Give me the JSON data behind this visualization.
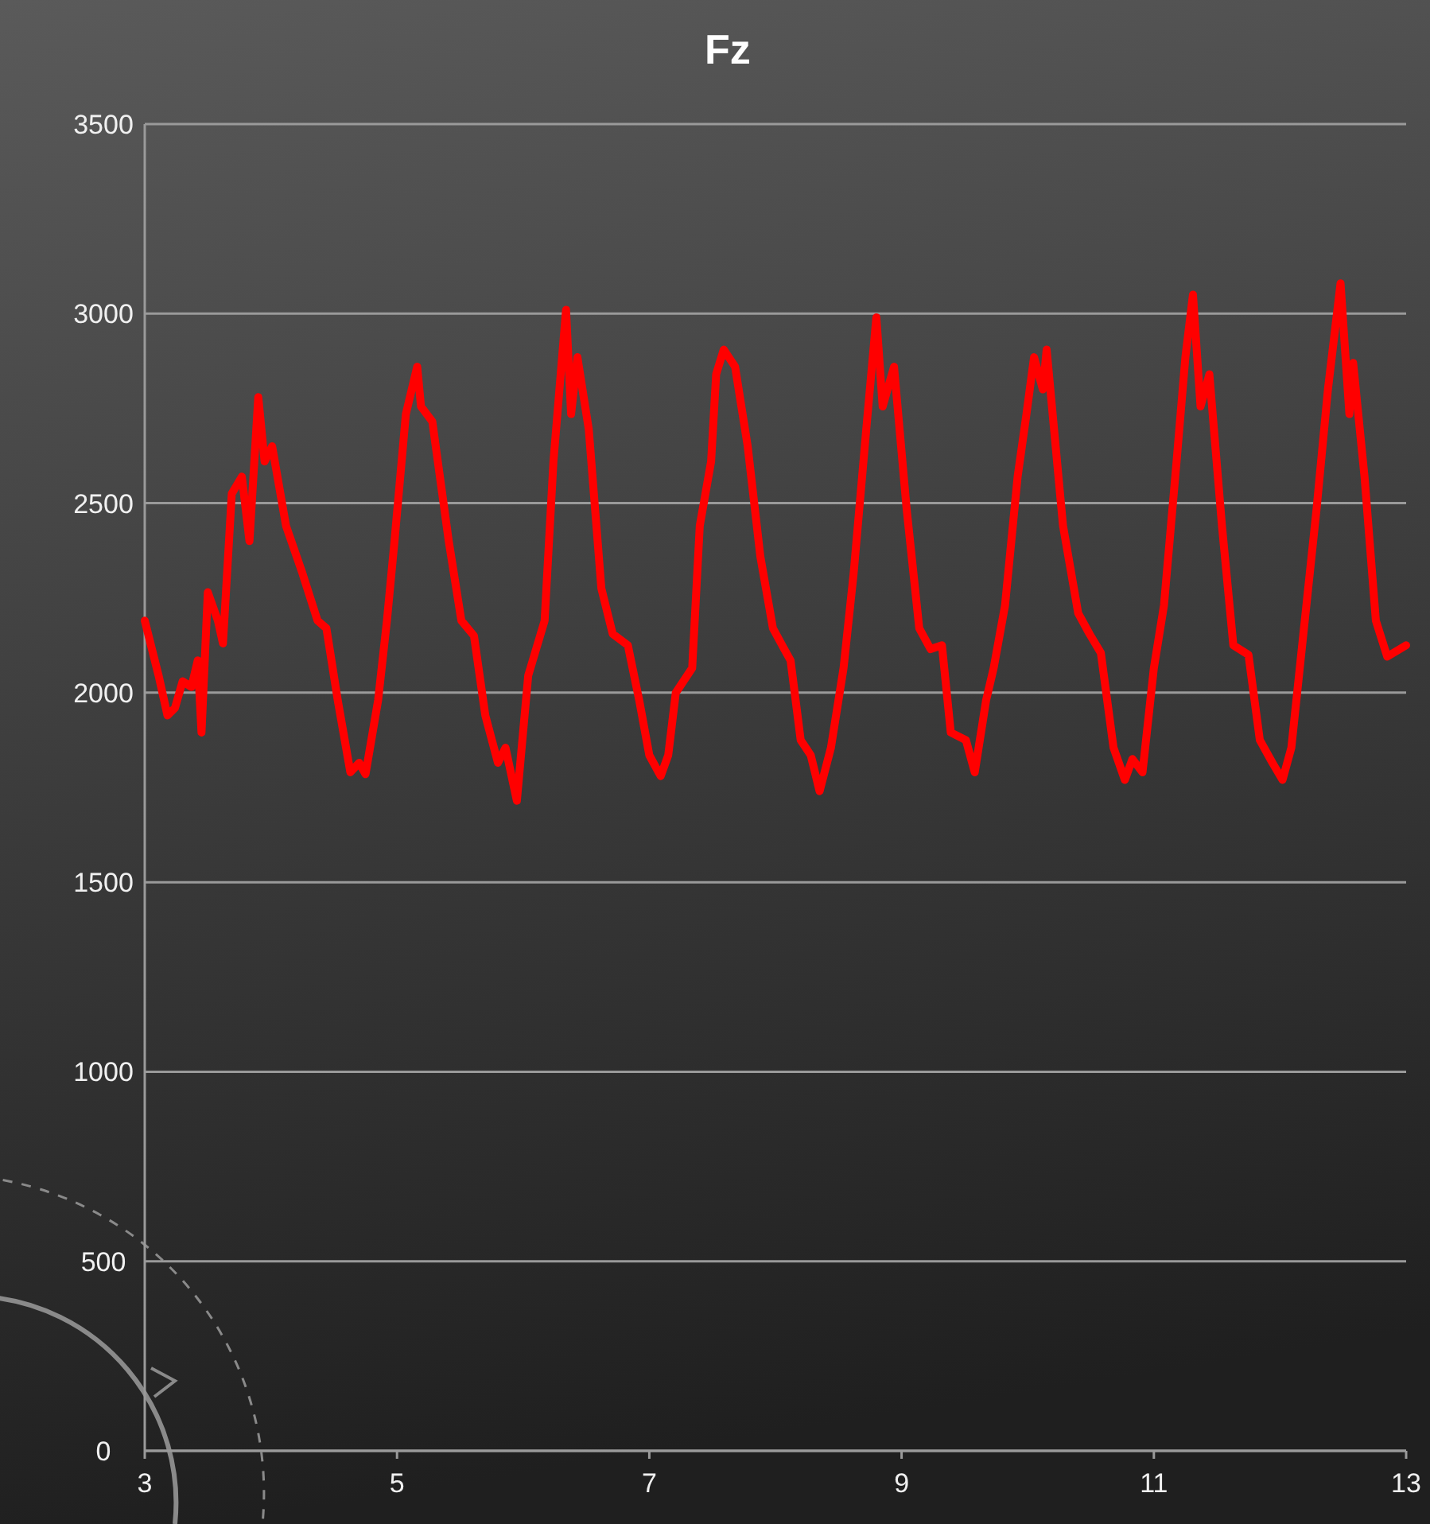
{
  "chart_data": {
    "type": "line",
    "title": "Fz",
    "x": [
      3.0,
      3.11,
      3.18,
      3.24,
      3.3,
      3.37,
      3.42,
      3.45,
      3.5,
      3.58,
      3.62,
      3.69,
      3.77,
      3.83,
      3.9,
      3.95,
      4.01,
      4.12,
      4.25,
      4.37,
      4.44,
      4.53,
      4.63,
      4.7,
      4.75,
      4.85,
      4.92,
      4.98,
      5.07,
      5.16,
      5.19,
      5.28,
      5.41,
      5.51,
      5.61,
      5.7,
      5.8,
      5.86,
      5.95,
      6.04,
      6.17,
      6.24,
      6.34,
      6.38,
      6.43,
      6.52,
      6.62,
      6.71,
      6.83,
      6.92,
      7.0,
      7.09,
      7.15,
      7.21,
      7.34,
      7.4,
      7.49,
      7.53,
      7.59,
      7.68,
      7.78,
      7.88,
      7.98,
      8.07,
      8.12,
      8.2,
      8.28,
      8.35,
      8.44,
      8.54,
      8.62,
      8.72,
      8.8,
      8.85,
      8.94,
      9.04,
      9.14,
      9.23,
      9.32,
      9.39,
      9.51,
      9.58,
      9.67,
      9.73,
      9.82,
      9.92,
      9.99,
      10.05,
      10.12,
      10.15,
      10.28,
      10.4,
      10.49,
      10.58,
      10.68,
      10.77,
      10.83,
      10.91,
      11.0,
      11.08,
      11.18,
      11.25,
      11.31,
      11.37,
      11.44,
      11.54,
      11.63,
      11.75,
      11.84,
      11.94,
      12.02,
      12.09,
      12.19,
      12.29,
      12.38,
      12.48,
      12.55,
      12.58,
      12.67,
      12.76,
      12.85,
      13.0
    ],
    "series": [
      {
        "color": "#ff0000",
        "values": [
          2190,
          2045,
          1940,
          1960,
          2030,
          2015,
          2085,
          1895,
          2265,
          2190,
          2130,
          2525,
          2570,
          2400,
          2780,
          2610,
          2650,
          2440,
          2315,
          2190,
          2170,
          1980,
          1790,
          1815,
          1785,
          1980,
          2190,
          2400,
          2735,
          2860,
          2755,
          2715,
          2400,
          2190,
          2150,
          1940,
          1815,
          1855,
          1715,
          2045,
          2190,
          2610,
          3010,
          2735,
          2885,
          2695,
          2275,
          2155,
          2125,
          1980,
          1835,
          1780,
          1835,
          2000,
          2065,
          2440,
          2610,
          2840,
          2905,
          2860,
          2650,
          2360,
          2170,
          2115,
          2085,
          1875,
          1835,
          1740,
          1855,
          2065,
          2315,
          2695,
          2990,
          2755,
          2860,
          2485,
          2170,
          2115,
          2125,
          1895,
          1875,
          1790,
          1980,
          2065,
          2230,
          2570,
          2735,
          2885,
          2800,
          2905,
          2440,
          2210,
          2155,
          2105,
          1855,
          1770,
          1825,
          1790,
          2065,
          2230,
          2610,
          2885,
          3050,
          2755,
          2840,
          2440,
          2125,
          2100,
          1875,
          1815,
          1770,
          1855,
          2170,
          2485,
          2800,
          3080,
          2735,
          2870,
          2570,
          2190,
          2095,
          2125
        ]
      }
    ],
    "xlim": [
      3,
      13
    ],
    "xticks": [
      3,
      5,
      7,
      9,
      11,
      13
    ],
    "ylim": [
      0,
      3500
    ],
    "yticks": [
      0,
      500,
      1000,
      1500,
      2000,
      2500,
      3000,
      3500
    ],
    "grid": "y",
    "marker": "none",
    "line_style": "solid"
  }
}
